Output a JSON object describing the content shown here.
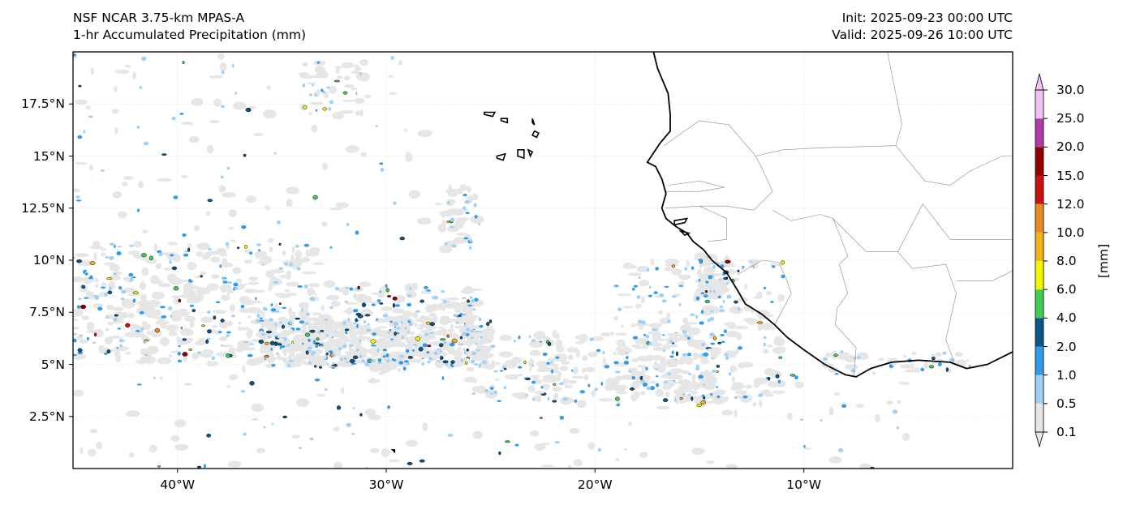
{
  "header": {
    "model": "NSF NCAR 3.75-km MPAS-A",
    "field": "1-hr Accumulated Precipitation (mm)",
    "init": "Init: 2025-09-23 00:00 UTC",
    "valid": "Valid: 2025-09-26 10:00 UTC"
  },
  "map": {
    "lon_range": [
      -45,
      0
    ],
    "lat_range": [
      0,
      20
    ],
    "lat_ticks": [
      {
        "value": 17.5,
        "label": "17.5°N"
      },
      {
        "value": 15,
        "label": "15°N"
      },
      {
        "value": 12.5,
        "label": "12.5°N"
      },
      {
        "value": 10,
        "label": "10°N"
      },
      {
        "value": 7.5,
        "label": "7.5°N"
      },
      {
        "value": 5,
        "label": "5°N"
      },
      {
        "value": 2.5,
        "label": "2.5°N"
      }
    ],
    "lon_ticks": [
      {
        "value": -40,
        "label": "40°W"
      },
      {
        "value": -30,
        "label": "30°W"
      },
      {
        "value": -20,
        "label": "20°W"
      },
      {
        "value": -10,
        "label": "10°W"
      }
    ],
    "coastline": [
      [
        -17.2,
        20
      ],
      [
        -17.0,
        19.2
      ],
      [
        -16.5,
        18.0
      ],
      [
        -16.4,
        17.0
      ],
      [
        -16.4,
        16.2
      ],
      [
        -16.9,
        15.6
      ],
      [
        -17.5,
        14.7
      ],
      [
        -17.1,
        14.5
      ],
      [
        -16.8,
        13.9
      ],
      [
        -16.6,
        13.2
      ],
      [
        -16.8,
        12.5
      ],
      [
        -16.6,
        12.0
      ],
      [
        -16.1,
        11.6
      ],
      [
        -15.6,
        11.3
      ],
      [
        -15.3,
        10.9
      ],
      [
        -14.8,
        10.5
      ],
      [
        -14.4,
        10.0
      ],
      [
        -13.7,
        9.4
      ],
      [
        -13.2,
        8.6
      ],
      [
        -12.8,
        7.9
      ],
      [
        -12.0,
        7.4
      ],
      [
        -11.4,
        6.9
      ],
      [
        -10.8,
        6.3
      ],
      [
        -10.0,
        5.7
      ],
      [
        -9.0,
        5.0
      ],
      [
        -8.0,
        4.5
      ],
      [
        -7.5,
        4.4
      ],
      [
        -6.8,
        4.8
      ],
      [
        -5.8,
        5.1
      ],
      [
        -4.5,
        5.2
      ],
      [
        -3.0,
        5.1
      ],
      [
        -2.2,
        4.8
      ],
      [
        -1.2,
        5.0
      ],
      [
        0,
        5.6
      ]
    ],
    "borders": [
      [
        [
          -16.7,
          15.5
        ],
        [
          -15.0,
          16.7
        ],
        [
          -13.6,
          16.5
        ],
        [
          -12.3,
          15.0
        ],
        [
          -12.0,
          14.4
        ],
        [
          -11.5,
          13.3
        ],
        [
          -12.4,
          12.4
        ],
        [
          -13.7,
          12.6
        ],
        [
          -15.0,
          12.6
        ],
        [
          -16.6,
          12.5
        ]
      ],
      [
        [
          -16.5,
          13.6
        ],
        [
          -15.0,
          13.8
        ],
        [
          -13.8,
          13.5
        ],
        [
          -15.0,
          13.3
        ],
        [
          -16.6,
          13.3
        ]
      ],
      [
        [
          -15.0,
          12.6
        ],
        [
          -13.7,
          12.0
        ],
        [
          -13.7,
          11.0
        ],
        [
          -14.6,
          10.9
        ]
      ],
      [
        [
          -13.2,
          9.3
        ],
        [
          -12.0,
          10.0
        ],
        [
          -11.2,
          9.9
        ],
        [
          -10.8,
          9.0
        ],
        [
          -10.6,
          8.4
        ],
        [
          -11.4,
          6.9
        ]
      ],
      [
        [
          -11.5,
          12.4
        ],
        [
          -10.6,
          11.9
        ],
        [
          -9.2,
          12.2
        ],
        [
          -8.6,
          12.0
        ],
        [
          -8.2,
          11.0
        ],
        [
          -7.9,
          10.2
        ],
        [
          -8.3,
          9.8
        ],
        [
          -7.9,
          8.4
        ],
        [
          -8.4,
          7.7
        ],
        [
          -8.5,
          6.9
        ],
        [
          -7.5,
          5.8
        ],
        [
          -7.6,
          4.4
        ]
      ],
      [
        [
          -12.3,
          15.0
        ],
        [
          -11.0,
          15.3
        ],
        [
          -9.0,
          15.4
        ],
        [
          -5.6,
          15.5
        ],
        [
          -5.3,
          16.5
        ],
        [
          -6.0,
          20.0
        ]
      ],
      [
        [
          -5.6,
          15.5
        ],
        [
          -4.2,
          13.8
        ],
        [
          -3.0,
          13.6
        ],
        [
          -2.0,
          14.3
        ],
        [
          -0.5,
          15.0
        ],
        [
          0,
          15.0
        ]
      ],
      [
        [
          -5.5,
          10.4
        ],
        [
          -4.3,
          12.7
        ],
        [
          -3.0,
          11.0
        ],
        [
          -2.0,
          11.0
        ],
        [
          -0.5,
          11.0
        ],
        [
          0,
          11.0
        ]
      ],
      [
        [
          -5.5,
          10.4
        ],
        [
          -4.8,
          9.6
        ],
        [
          -3.2,
          9.8
        ],
        [
          -2.7,
          8.4
        ],
        [
          -3.2,
          6.2
        ],
        [
          -2.8,
          5.1
        ]
      ],
      [
        [
          -8.6,
          12.0
        ],
        [
          -7.0,
          10.4
        ],
        [
          -5.5,
          10.4
        ]
      ],
      [
        [
          -2.7,
          9.0
        ],
        [
          -1.0,
          9.0
        ],
        [
          0,
          9.5
        ]
      ]
    ],
    "islands": [
      [
        [
          -25.3,
          17.1
        ],
        [
          -24.8,
          17.1
        ],
        [
          -24.9,
          16.9
        ],
        [
          -25.3,
          17.0
        ]
      ],
      [
        [
          -24.5,
          16.8
        ],
        [
          -24.2,
          16.8
        ],
        [
          -24.2,
          16.6
        ],
        [
          -24.5,
          16.7
        ]
      ],
      [
        [
          -23.0,
          16.8
        ],
        [
          -22.9,
          16.5
        ],
        [
          -23.0,
          16.6
        ]
      ],
      [
        [
          -22.9,
          16.2
        ],
        [
          -22.7,
          16.1
        ],
        [
          -22.8,
          15.9
        ],
        [
          -23.0,
          16.0
        ]
      ],
      [
        [
          -24.7,
          15.0
        ],
        [
          -24.3,
          15.1
        ],
        [
          -24.4,
          14.8
        ],
        [
          -24.7,
          14.9
        ]
      ],
      [
        [
          -23.7,
          15.3
        ],
        [
          -23.4,
          15.3
        ],
        [
          -23.4,
          14.9
        ],
        [
          -23.7,
          15.0
        ]
      ],
      [
        [
          -23.2,
          15.3
        ],
        [
          -23.0,
          15.2
        ],
        [
          -23.1,
          15.0
        ]
      ],
      [
        [
          -16.2,
          11.9
        ],
        [
          -15.6,
          12.0
        ],
        [
          -15.7,
          11.8
        ],
        [
          -16.2,
          11.7
        ]
      ],
      [
        [
          -15.9,
          11.4
        ],
        [
          -15.5,
          11.3
        ],
        [
          -15.7,
          11.2
        ]
      ],
      [
        [
          -29.7,
          0.9
        ],
        [
          -29.6,
          0.9
        ],
        [
          -29.6,
          0.8
        ]
      ]
    ],
    "precip_zones": [
      {
        "lon0": -45,
        "lon1": -25.5,
        "lat0": 5.2,
        "lat1": 9.3,
        "n": 420,
        "tilt": -0.15,
        "intensity": 0.95
      },
      {
        "lon0": -36,
        "lon1": -25,
        "lat0": 5.0,
        "lat1": 7.2,
        "n": 260,
        "tilt": 0,
        "intensity": 1.0
      },
      {
        "lon0": -45,
        "lon1": -33,
        "lat0": 9.0,
        "lat1": 10.8,
        "n": 80,
        "tilt": 0,
        "intensity": 0.55
      },
      {
        "lon0": -26,
        "lon1": -14,
        "lat0": 3.2,
        "lat1": 6.5,
        "n": 150,
        "tilt": 0,
        "intensity": 0.45
      },
      {
        "lon0": -19,
        "lon1": -11,
        "lat0": 3.0,
        "lat1": 10.0,
        "n": 180,
        "tilt": 0,
        "intensity": 0.5
      },
      {
        "lon0": -15,
        "lon1": -13.5,
        "lat0": 8.2,
        "lat1": 10.2,
        "n": 40,
        "tilt": 0,
        "intensity": 0.9
      },
      {
        "lon0": -27.5,
        "lon1": -25.5,
        "lat0": 10.5,
        "lat1": 13.5,
        "n": 30,
        "tilt": 0,
        "intensity": 0.5
      },
      {
        "lon0": -34,
        "lon1": -31,
        "lat0": 17.0,
        "lat1": 19.5,
        "n": 30,
        "tilt": 0,
        "intensity": 0.3
      },
      {
        "lon0": -45,
        "lon1": -28,
        "lat0": 10.5,
        "lat1": 20,
        "n": 70,
        "tilt": 0,
        "intensity": 0.15
      },
      {
        "lon0": -45,
        "lon1": -5,
        "lat0": 0,
        "lat1": 5,
        "n": 90,
        "tilt": 0,
        "intensity": 0.15
      },
      {
        "lon0": -9,
        "lon1": -2,
        "lat0": 4.6,
        "lat1": 5.6,
        "n": 30,
        "tilt": 0,
        "intensity": 0.3
      }
    ]
  },
  "colorbar": {
    "unit": "[mm]",
    "labels": [
      "0.1",
      "0.5",
      "1.0",
      "2.0",
      "4.0",
      "6.0",
      "8.0",
      "10.0",
      "12.0",
      "15.0",
      "20.0",
      "25.0",
      "30.0"
    ],
    "colors": [
      "#e6e6e6",
      "#9fd0f5",
      "#2f9bea",
      "#0b5688",
      "#3ecf55",
      "#f5f500",
      "#f6b21d",
      "#ea8a24",
      "#c81111",
      "#920000",
      "#b13aad",
      "#f5c0f3"
    ]
  }
}
